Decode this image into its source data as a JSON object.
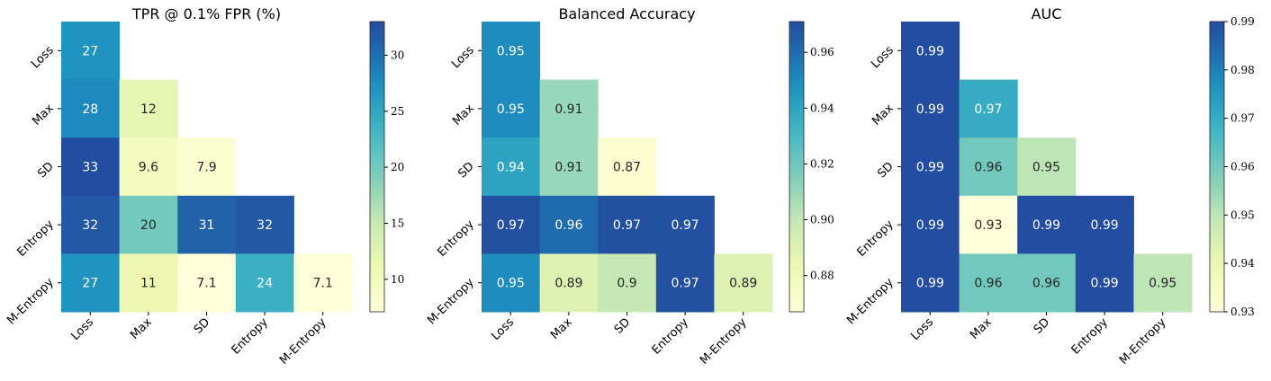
{
  "chart_data": [
    {
      "type": "heatmap",
      "title": "TPR @ 0.1% FPR (%)",
      "rows": [
        "Loss",
        "Max",
        "SD",
        "Entropy",
        "M-Entropy"
      ],
      "cols": [
        "Loss",
        "Max",
        "SD",
        "Entropy",
        "M-Entropy"
      ],
      "values": [
        [
          27,
          null,
          null,
          null,
          null
        ],
        [
          28,
          12,
          null,
          null,
          null
        ],
        [
          33,
          9.6,
          7.9,
          null,
          null
        ],
        [
          32,
          20,
          31,
          32,
          null
        ],
        [
          27,
          11,
          7.1,
          24,
          7.1
        ]
      ],
      "labels": [
        [
          "27",
          null,
          null,
          null,
          null
        ],
        [
          "28",
          "12",
          null,
          null,
          null
        ],
        [
          "33",
          "9.6",
          "7.9",
          null,
          null
        ],
        [
          "32",
          "20",
          "31",
          "32",
          null
        ],
        [
          "27",
          "11",
          "7.1",
          "24",
          "7.1"
        ]
      ],
      "colorbar": {
        "vmin": 7.1,
        "vmax": 33,
        "ticks": [
          10,
          15,
          20,
          25,
          30
        ],
        "tick_labels": [
          "10",
          "15",
          "20",
          "25",
          "30"
        ]
      },
      "colormap": "YlGnBu"
    },
    {
      "type": "heatmap",
      "title": "Balanced Accuracy",
      "rows": [
        "Loss",
        "Max",
        "SD",
        "Entropy",
        "M-Entropy"
      ],
      "cols": [
        "Loss",
        "Max",
        "SD",
        "Entropy",
        "M-Entropy"
      ],
      "values": [
        [
          0.95,
          null,
          null,
          null,
          null
        ],
        [
          0.95,
          0.91,
          null,
          null,
          null
        ],
        [
          0.94,
          0.91,
          0.87,
          null,
          null
        ],
        [
          0.97,
          0.96,
          0.97,
          0.97,
          null
        ],
        [
          0.95,
          0.89,
          0.9,
          0.97,
          0.89
        ]
      ],
      "labels": [
        [
          "0.95",
          null,
          null,
          null,
          null
        ],
        [
          "0.95",
          "0.91",
          null,
          null,
          null
        ],
        [
          "0.94",
          "0.91",
          "0.87",
          null,
          null
        ],
        [
          "0.97",
          "0.96",
          "0.97",
          "0.97",
          null
        ],
        [
          "0.95",
          "0.89",
          "0.9",
          "0.97",
          "0.89"
        ]
      ],
      "colorbar": {
        "vmin": 0.867,
        "vmax": 0.971,
        "ticks": [
          0.88,
          0.9,
          0.92,
          0.94,
          0.96
        ],
        "tick_labels": [
          "0.88",
          "0.90",
          "0.92",
          "0.94",
          "0.96"
        ]
      },
      "colormap": "YlGnBu"
    },
    {
      "type": "heatmap",
      "title": "AUC",
      "rows": [
        "Loss",
        "Max",
        "SD",
        "Entropy",
        "M-Entropy"
      ],
      "cols": [
        "Loss",
        "Max",
        "SD",
        "Entropy",
        "M-Entropy"
      ],
      "values": [
        [
          0.99,
          null,
          null,
          null,
          null
        ],
        [
          0.99,
          0.97,
          null,
          null,
          null
        ],
        [
          0.99,
          0.96,
          0.95,
          null,
          null
        ],
        [
          0.99,
          0.93,
          0.99,
          0.99,
          null
        ],
        [
          0.99,
          0.96,
          0.96,
          0.99,
          0.95
        ]
      ],
      "labels": [
        [
          "0.99",
          null,
          null,
          null,
          null
        ],
        [
          "0.99",
          "0.97",
          null,
          null,
          null
        ],
        [
          "0.99",
          "0.96",
          "0.95",
          null,
          null
        ],
        [
          "0.99",
          "0.93",
          "0.99",
          "0.99",
          null
        ],
        [
          "0.99",
          "0.96",
          "0.96",
          "0.99",
          "0.95"
        ]
      ],
      "colorbar": {
        "vmin": 0.93,
        "vmax": 0.99,
        "ticks": [
          0.93,
          0.94,
          0.95,
          0.96,
          0.97,
          0.98,
          0.99
        ],
        "tick_labels": [
          "0.93",
          "0.94",
          "0.95",
          "0.96",
          "0.97",
          "0.98",
          "0.99"
        ]
      },
      "colormap": "YlGnBu"
    }
  ]
}
